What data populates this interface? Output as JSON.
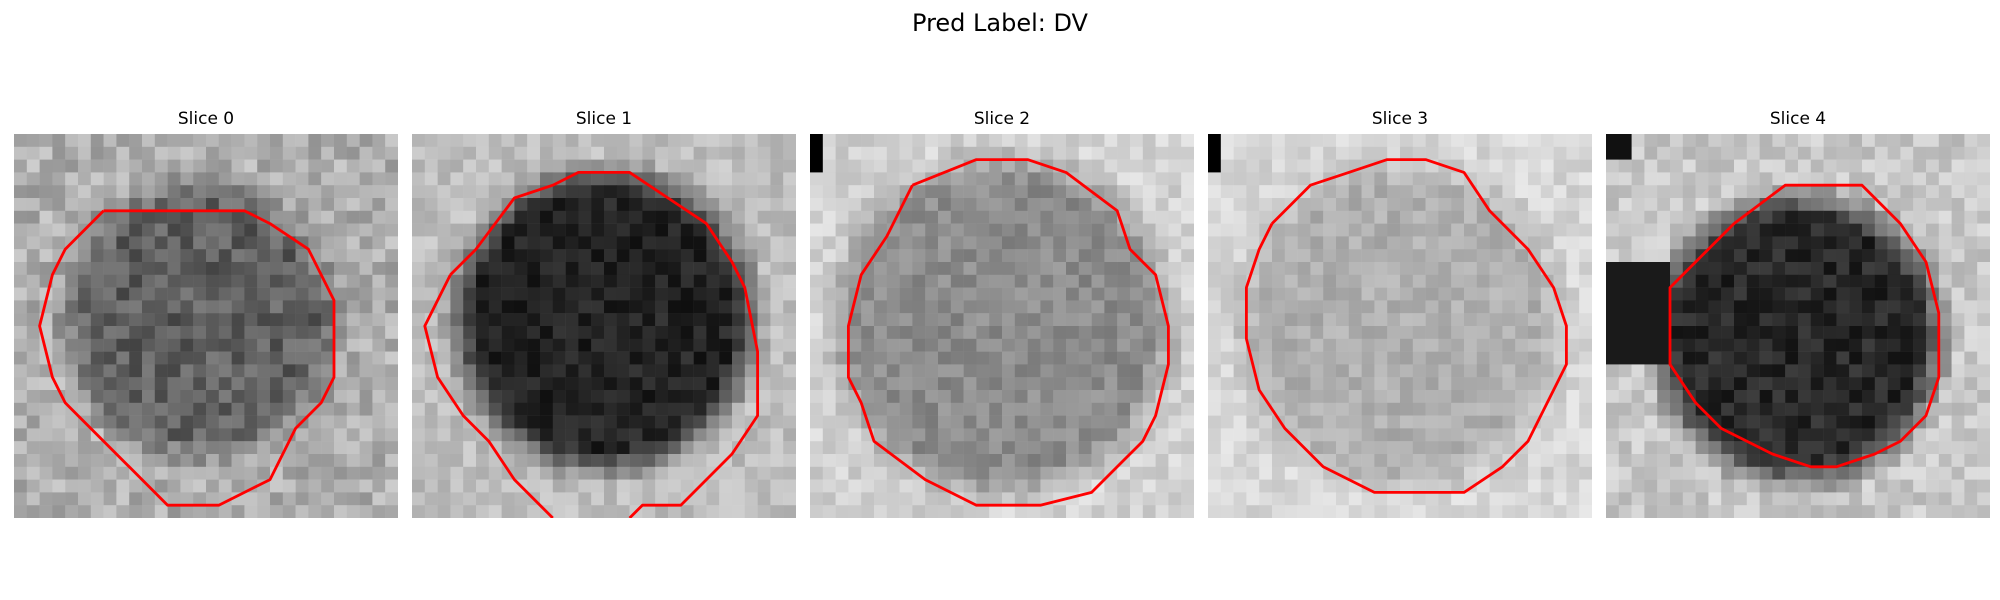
{
  "figure": {
    "title": "Pred Label: DV"
  },
  "panels": [
    {
      "title": "Slice 0",
      "image": "noisy grayscale patch with medium-dark blob",
      "contour_color": "#ff0000"
    },
    {
      "title": "Slice 1",
      "image": "noisy grayscale patch with very dark blob",
      "contour_color": "#ff0000"
    },
    {
      "title": "Slice 2",
      "image": "noisy grayscale patch with mid-gray disc",
      "contour_color": "#ff0000"
    },
    {
      "title": "Slice 3",
      "image": "noisy grayscale patch with light-gray disc",
      "contour_color": "#ff0000"
    },
    {
      "title": "Slice 4",
      "image": "noisy grayscale patch with dark blob",
      "contour_color": "#ff0000"
    }
  ]
}
